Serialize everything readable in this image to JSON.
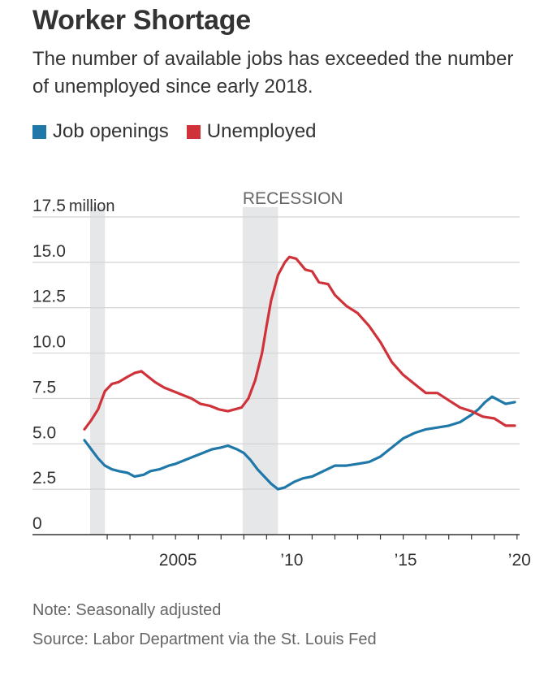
{
  "header": {
    "title": "Worker Shortage",
    "subtitle": "The number of available jobs has exceeded the number of unemployed since early 2018."
  },
  "legend": [
    {
      "label": "Job openings",
      "color": "#1f78a8"
    },
    {
      "label": "Unemployed",
      "color": "#d0323a"
    }
  ],
  "chart_data": {
    "type": "line",
    "title": "Worker Shortage",
    "ylabel": "",
    "ylim": [
      0,
      17.5
    ],
    "y_ticks": [
      0,
      2.5,
      5.0,
      7.5,
      10.0,
      12.5,
      15.0,
      17.5
    ],
    "y_tick_labels": [
      "0",
      "2.5",
      "5.0",
      "7.5",
      "10.0",
      "12.5",
      "15.0",
      "17.5"
    ],
    "y_top_unit": "million",
    "xlim": [
      2001.0,
      2019.9
    ],
    "x_ticks": [
      2005,
      2010,
      2015,
      2020
    ],
    "x_tick_labels": [
      "2005",
      "’10",
      "’15",
      "’20"
    ],
    "recession_label": "RECESSION",
    "recessions": [
      [
        2001.25,
        2001.9
      ],
      [
        2007.95,
        2009.5
      ]
    ],
    "grid": true,
    "legend_position": "top-left",
    "series": [
      {
        "name": "Job openings",
        "color": "#1f78a8",
        "x": [
          2001.0,
          2001.3,
          2001.6,
          2001.9,
          2002.2,
          2002.5,
          2002.9,
          2003.2,
          2003.6,
          2003.9,
          2004.3,
          2004.7,
          2005.0,
          2005.4,
          2005.8,
          2006.2,
          2006.6,
          2007.0,
          2007.3,
          2007.7,
          2008.0,
          2008.3,
          2008.6,
          2008.9,
          2009.2,
          2009.5,
          2009.8,
          2010.2,
          2010.6,
          2011.0,
          2011.5,
          2012.0,
          2012.5,
          2013.0,
          2013.5,
          2014.0,
          2014.5,
          2015.0,
          2015.5,
          2016.0,
          2016.5,
          2017.0,
          2017.5,
          2018.0,
          2018.3,
          2018.6,
          2018.9,
          2019.2,
          2019.5,
          2019.9
        ],
        "y": [
          5.2,
          4.7,
          4.2,
          3.8,
          3.6,
          3.5,
          3.4,
          3.2,
          3.3,
          3.5,
          3.6,
          3.8,
          3.9,
          4.1,
          4.3,
          4.5,
          4.7,
          4.8,
          4.9,
          4.7,
          4.5,
          4.1,
          3.6,
          3.2,
          2.8,
          2.5,
          2.6,
          2.9,
          3.1,
          3.2,
          3.5,
          3.8,
          3.8,
          3.9,
          4.0,
          4.3,
          4.8,
          5.3,
          5.6,
          5.8,
          5.9,
          6.0,
          6.2,
          6.6,
          6.9,
          7.3,
          7.6,
          7.4,
          7.2,
          7.3
        ]
      },
      {
        "name": "Unemployed",
        "color": "#d0323a",
        "x": [
          2001.0,
          2001.3,
          2001.6,
          2001.9,
          2002.2,
          2002.5,
          2002.9,
          2003.2,
          2003.5,
          2003.8,
          2004.1,
          2004.5,
          2004.9,
          2005.3,
          2005.7,
          2006.1,
          2006.5,
          2006.9,
          2007.3,
          2007.6,
          2007.9,
          2008.2,
          2008.5,
          2008.8,
          2009.0,
          2009.2,
          2009.5,
          2009.8,
          2010.0,
          2010.3,
          2010.7,
          2011.0,
          2011.3,
          2011.7,
          2012.0,
          2012.5,
          2013.0,
          2013.5,
          2014.0,
          2014.5,
          2015.0,
          2015.5,
          2016.0,
          2016.5,
          2017.0,
          2017.5,
          2018.0,
          2018.5,
          2019.0,
          2019.5,
          2019.9
        ],
        "y": [
          5.8,
          6.3,
          6.9,
          7.9,
          8.3,
          8.4,
          8.7,
          8.9,
          9.0,
          8.7,
          8.4,
          8.1,
          7.9,
          7.7,
          7.5,
          7.2,
          7.1,
          6.9,
          6.8,
          6.9,
          7.0,
          7.5,
          8.5,
          10.0,
          11.5,
          12.9,
          14.3,
          15.0,
          15.3,
          15.2,
          14.6,
          14.5,
          13.9,
          13.8,
          13.2,
          12.6,
          12.2,
          11.5,
          10.6,
          9.5,
          8.8,
          8.3,
          7.8,
          7.8,
          7.4,
          7.0,
          6.8,
          6.5,
          6.4,
          6.0,
          6.0
        ]
      }
    ]
  },
  "footer": {
    "note": "Note: Seasonally adjusted",
    "source": "Source: Labor Department via the St. Louis Fed"
  }
}
